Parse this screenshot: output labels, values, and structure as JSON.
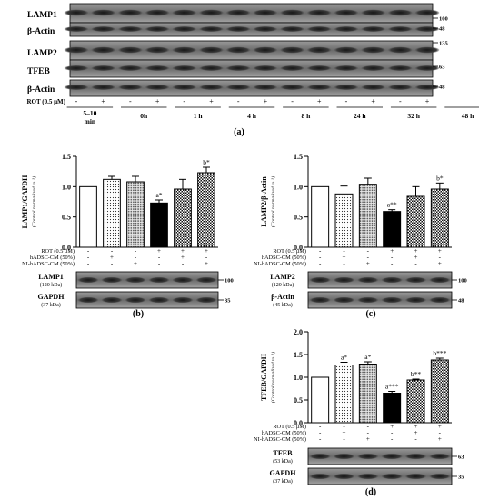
{
  "panel_a": {
    "label": "(a)",
    "blot_labels": [
      "LAMP1",
      "β-Actin",
      "LAMP2",
      "TFEB",
      "β-Actin"
    ],
    "mw_markers": [
      "100",
      "48",
      "135",
      "63",
      "48"
    ],
    "rot_label": "ROT (0.5 μM)",
    "rot_signs": [
      "-",
      "+",
      "-",
      "+",
      "-",
      "+",
      "-",
      "+",
      "-",
      "+",
      "-",
      "+",
      "-",
      "+"
    ],
    "time_labels": [
      "5–10 min",
      "0h",
      "1 h",
      "4 h",
      "8 h",
      "24 h",
      "32 h",
      "48 h"
    ]
  },
  "charts": [
    {
      "panel_label": "(b)",
      "chart_data": {
        "type": "bar",
        "ylabel": "LAMP1/GAPDH",
        "ylabel_sub": "(Control normalized to 1)",
        "ylim": [
          0,
          1.5
        ],
        "yticks": [
          "0.0",
          "0.5",
          "1.0",
          "1.5"
        ],
        "values": [
          1.0,
          1.12,
          1.08,
          0.73,
          0.96,
          1.23
        ],
        "errors": [
          0.0,
          0.05,
          0.09,
          0.05,
          0.16,
          0.09
        ],
        "annotations": [
          "",
          "",
          "",
          "a*",
          "",
          "b*"
        ],
        "fills": [
          "white",
          "dots",
          "dense",
          "black",
          "checker",
          "checker"
        ]
      },
      "conditions": [
        {
          "label": "ROT (0.5 μM)",
          "signs": [
            "-",
            "-",
            "-",
            "+",
            "+",
            "+"
          ]
        },
        {
          "label": "hADSC-CM (50%)",
          "signs": [
            "-",
            "+",
            "-",
            "-",
            "+",
            "-"
          ]
        },
        {
          "label": "NI-hADSC-CM (50%)",
          "signs": [
            "-",
            "-",
            "+",
            "-",
            "-",
            "+"
          ]
        }
      ],
      "blots": [
        {
          "name": "LAMP1",
          "kda": "(120 kDa)",
          "mw": "100"
        },
        {
          "name": "GAPDH",
          "kda": "(37 kDa)",
          "mw": "35"
        }
      ]
    },
    {
      "panel_label": "(c)",
      "chart_data": {
        "type": "bar",
        "ylabel": "LAMP2/β-Actin",
        "ylabel_sub": "(Control normalized to 1)",
        "ylim": [
          0,
          1.5
        ],
        "yticks": [
          "0.0",
          "0.5",
          "1.0",
          "1.5"
        ],
        "values": [
          1.0,
          0.88,
          1.04,
          0.59,
          0.84,
          0.96
        ],
        "errors": [
          0.0,
          0.13,
          0.1,
          0.03,
          0.16,
          0.1
        ],
        "annotations": [
          "",
          "",
          "",
          "a**",
          "",
          "b*"
        ],
        "fills": [
          "white",
          "dots",
          "dense",
          "black",
          "checker",
          "checker"
        ]
      },
      "conditions": [
        {
          "label": "ROT (0.5 μM)",
          "signs": [
            "-",
            "-",
            "-",
            "+",
            "+",
            "+"
          ]
        },
        {
          "label": "hADSC-CM (50%)",
          "signs": [
            "-",
            "+",
            "-",
            "-",
            "+",
            "-"
          ]
        },
        {
          "label": "NI-hADSC-CM (50%)",
          "signs": [
            "-",
            "-",
            "+",
            "-",
            "-",
            "+"
          ]
        }
      ],
      "blots": [
        {
          "name": "LAMP2",
          "kda": "(120 kDa)",
          "mw": "100"
        },
        {
          "name": "β-Actin",
          "kda": "(45 kDa)",
          "mw": "48"
        }
      ]
    },
    {
      "panel_label": "(d)",
      "chart_data": {
        "type": "bar",
        "ylabel": "TFEB/GAPDH",
        "ylabel_sub": "(Control normalized to 1)",
        "ylim": [
          0,
          2.0
        ],
        "yticks": [
          "0.0",
          "0.5",
          "1.0",
          "1.5",
          "2.0"
        ],
        "values": [
          1.0,
          1.27,
          1.29,
          0.65,
          0.94,
          1.38
        ],
        "errors": [
          0.0,
          0.06,
          0.05,
          0.04,
          0.02,
          0.04
        ],
        "annotations": [
          "",
          "a*",
          "a*",
          "a***",
          "b**",
          "b***"
        ],
        "fills": [
          "white",
          "dots",
          "dense",
          "black",
          "checker",
          "checker"
        ]
      },
      "conditions": [
        {
          "label": "ROT (0.5 μM)",
          "signs": [
            "-",
            "-",
            "-",
            "+",
            "+",
            "+"
          ]
        },
        {
          "label": "hADSC-CM (50%)",
          "signs": [
            "-",
            "+",
            "-",
            "-",
            "+",
            "-"
          ]
        },
        {
          "label": "NI-hADSC-CM (50%)",
          "signs": [
            "-",
            "-",
            "+",
            "-",
            "-",
            "+"
          ]
        }
      ],
      "blots": [
        {
          "name": "TFEB",
          "kda": "(53 kDa)",
          "mw": "63"
        },
        {
          "name": "GAPDH",
          "kda": "(37 kDa)",
          "mw": "35"
        }
      ]
    }
  ]
}
